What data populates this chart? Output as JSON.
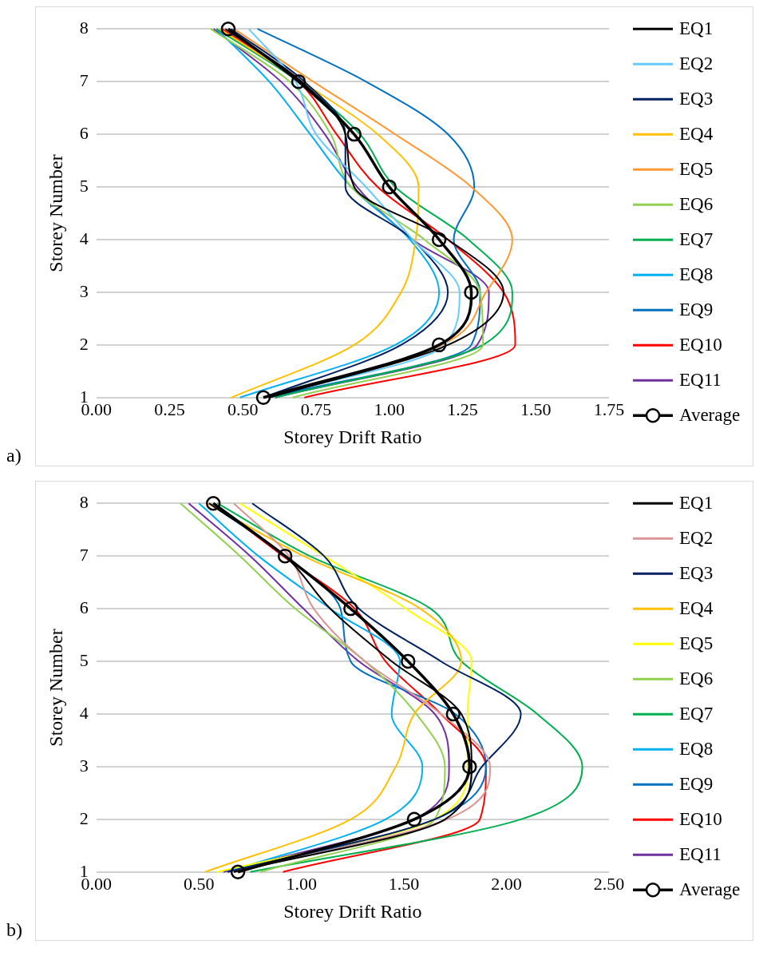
{
  "chart_data": [
    {
      "type": "line",
      "xlabel": "Storey Drift Ratio",
      "ylabel": "Storey Number",
      "annotations": [
        "a)"
      ],
      "xlim": [
        0,
        1.75
      ],
      "xticks": [
        {
          "value": 0,
          "label": "0.00"
        },
        {
          "value": 0.25,
          "label": "0.25"
        },
        {
          "value": 0.5,
          "label": "0.50"
        },
        {
          "value": 0.75,
          "label": "0.75"
        },
        {
          "value": 1,
          "label": "1.00"
        },
        {
          "value": 1.25,
          "label": "1.25"
        },
        {
          "value": 1.5,
          "label": "1.50"
        },
        {
          "value": 1.75,
          "label": "1.75"
        }
      ],
      "ylim": [
        1,
        8
      ],
      "yticks": [
        1,
        2,
        3,
        4,
        5,
        6,
        7,
        8
      ],
      "grid": "y",
      "legend": "right",
      "marker": "none",
      "series": [
        {
          "name": "EQ1",
          "color": "#000000",
          "x": [
            0.59,
            1.2,
            1.39,
            1.2,
            0.88,
            0.85,
            0.7,
            0.44
          ],
          "values": [
            1,
            2,
            3,
            4,
            5,
            6,
            7,
            8
          ]
        },
        {
          "name": "EQ2",
          "color": "#66ccff",
          "x": [
            0.58,
            1.19,
            1.24,
            1.08,
            0.92,
            0.75,
            0.68,
            0.52
          ],
          "values": [
            1,
            2,
            3,
            4,
            5,
            6,
            7,
            8
          ]
        },
        {
          "name": "EQ3",
          "color": "#002060",
          "x": [
            0.57,
            1.04,
            1.2,
            1.08,
            0.85,
            0.85,
            0.71,
            0.46
          ],
          "values": [
            1,
            2,
            3,
            4,
            5,
            6,
            7,
            8
          ]
        },
        {
          "name": "EQ4",
          "color": "#ffc000",
          "x": [
            0.46,
            0.88,
            1.04,
            1.09,
            1.1,
            0.96,
            0.7,
            0.42
          ],
          "values": [
            1,
            2,
            3,
            4,
            5,
            6,
            7,
            8
          ]
        },
        {
          "name": "EQ5",
          "color": "#ff9933",
          "x": [
            0.58,
            1.18,
            1.33,
            1.42,
            1.28,
            1.02,
            0.74,
            0.47
          ],
          "values": [
            1,
            2,
            3,
            4,
            5,
            6,
            7,
            8
          ]
        },
        {
          "name": "EQ6",
          "color": "#92d050",
          "x": [
            0.67,
            1.32,
            1.31,
            1.12,
            0.87,
            0.8,
            0.66,
            0.39
          ],
          "values": [
            1,
            2,
            3,
            4,
            5,
            6,
            7,
            8
          ]
        },
        {
          "name": "EQ7",
          "color": "#00b050",
          "x": [
            0.61,
            1.32,
            1.42,
            1.27,
            1.02,
            0.9,
            0.69,
            0.41
          ],
          "values": [
            1,
            2,
            3,
            4,
            5,
            6,
            7,
            8
          ]
        },
        {
          "name": "EQ8",
          "color": "#00b0f0",
          "x": [
            0.49,
            1.02,
            1.17,
            1.07,
            0.87,
            0.73,
            0.59,
            0.41
          ],
          "values": [
            1,
            2,
            3,
            4,
            5,
            6,
            7,
            8
          ]
        },
        {
          "name": "EQ9",
          "color": "#0070c0",
          "x": [
            0.59,
            1.28,
            1.31,
            1.22,
            1.29,
            1.2,
            0.92,
            0.55
          ],
          "values": [
            1,
            2,
            3,
            4,
            5,
            6,
            7,
            8
          ]
        },
        {
          "name": "EQ10",
          "color": "#ff0000",
          "x": [
            0.71,
            1.43,
            1.39,
            1.2,
            0.96,
            0.82,
            0.69,
            0.43
          ],
          "values": [
            1,
            2,
            3,
            4,
            5,
            6,
            7,
            8
          ]
        },
        {
          "name": "EQ11",
          "color": "#7030a0",
          "x": [
            0.61,
            1.3,
            1.34,
            1.08,
            0.89,
            0.78,
            0.63,
            0.4
          ],
          "values": [
            1,
            2,
            3,
            4,
            5,
            6,
            7,
            8
          ]
        },
        {
          "name": "Average",
          "color": "#000000",
          "marker": "circle",
          "x": [
            0.57,
            1.17,
            1.28,
            1.17,
            1.0,
            0.88,
            0.69,
            0.45
          ],
          "values": [
            1,
            2,
            3,
            4,
            5,
            6,
            7,
            8
          ]
        }
      ]
    },
    {
      "type": "line",
      "xlabel": "Storey Drift Ratio",
      "ylabel": "Storey Number",
      "annotations": [
        "b)"
      ],
      "xlim": [
        0,
        2.5
      ],
      "xticks": [
        {
          "value": 0,
          "label": "0.00"
        },
        {
          "value": 0.5,
          "label": "0.50"
        },
        {
          "value": 1,
          "label": "1.00"
        },
        {
          "value": 1.5,
          "label": "1.50"
        },
        {
          "value": 2,
          "label": "2.00"
        },
        {
          "value": 2.5,
          "label": "2.50"
        }
      ],
      "ylim": [
        1,
        8
      ],
      "yticks": [
        1,
        2,
        3,
        4,
        5,
        6,
        7,
        8
      ],
      "grid": "y",
      "legend": "right",
      "marker": "none",
      "series": [
        {
          "name": "EQ1",
          "color": "#000000",
          "x": [
            0.67,
            1.7,
            1.83,
            1.78,
            1.44,
            1.14,
            0.92,
            0.55
          ],
          "values": [
            1,
            2,
            3,
            4,
            5,
            6,
            7,
            8
          ]
        },
        {
          "name": "EQ2",
          "color": "#da9694",
          "x": [
            0.67,
            1.71,
            1.92,
            1.68,
            1.31,
            1.06,
            0.94,
            0.67
          ],
          "values": [
            1,
            2,
            3,
            4,
            5,
            6,
            7,
            8
          ]
        },
        {
          "name": "EQ3",
          "color": "#002060",
          "x": [
            0.64,
            1.65,
            1.88,
            2.07,
            1.68,
            1.28,
            1.11,
            0.76
          ],
          "values": [
            1,
            2,
            3,
            4,
            5,
            6,
            7,
            8
          ]
        },
        {
          "name": "EQ4",
          "color": "#ffc000",
          "x": [
            0.53,
            1.24,
            1.46,
            1.55,
            1.78,
            1.58,
            1.01,
            0.54
          ],
          "values": [
            1,
            2,
            3,
            4,
            5,
            6,
            7,
            8
          ]
        },
        {
          "name": "EQ5",
          "color": "#ffff00",
          "x": [
            0.59,
            1.65,
            1.81,
            1.81,
            1.83,
            1.51,
            1.11,
            0.7
          ],
          "values": [
            1,
            2,
            3,
            4,
            5,
            6,
            7,
            8
          ]
        },
        {
          "name": "EQ6",
          "color": "#92d050",
          "x": [
            0.8,
            1.65,
            1.7,
            1.56,
            1.31,
            0.97,
            0.7,
            0.41
          ],
          "values": [
            1,
            2,
            3,
            4,
            5,
            6,
            7,
            8
          ]
        },
        {
          "name": "EQ7",
          "color": "#00b050",
          "x": [
            0.75,
            2.07,
            2.37,
            2.15,
            1.78,
            1.63,
            1.04,
            0.59
          ],
          "values": [
            1,
            2,
            3,
            4,
            5,
            6,
            7,
            8
          ]
        },
        {
          "name": "EQ8",
          "color": "#00b0f0",
          "x": [
            0.64,
            1.41,
            1.59,
            1.44,
            1.48,
            1.14,
            0.79,
            0.5
          ],
          "values": [
            1,
            2,
            3,
            4,
            5,
            6,
            7,
            8
          ]
        },
        {
          "name": "EQ9",
          "color": "#0070c0",
          "x": [
            0.67,
            1.65,
            1.9,
            1.75,
            1.24,
            1.19,
            0.92,
            0.55
          ],
          "values": [
            1,
            2,
            3,
            4,
            5,
            6,
            7,
            8
          ]
        },
        {
          "name": "EQ10",
          "color": "#ff0000",
          "x": [
            0.91,
            1.87,
            1.9,
            1.68,
            1.41,
            1.26,
            0.91,
            0.57
          ],
          "values": [
            1,
            2,
            3,
            4,
            5,
            6,
            7,
            8
          ]
        },
        {
          "name": "EQ11",
          "color": "#7030a0",
          "x": [
            0.62,
            1.55,
            1.72,
            1.65,
            1.28,
            1.01,
            0.75,
            0.45
          ],
          "values": [
            1,
            2,
            3,
            4,
            5,
            6,
            7,
            8
          ]
        },
        {
          "name": "Average",
          "color": "#000000",
          "marker": "circle",
          "x": [
            0.69,
            1.55,
            1.82,
            1.74,
            1.52,
            1.24,
            0.92,
            0.57
          ],
          "values": [
            1,
            2,
            3,
            4,
            5,
            6,
            7,
            8
          ]
        }
      ]
    }
  ]
}
